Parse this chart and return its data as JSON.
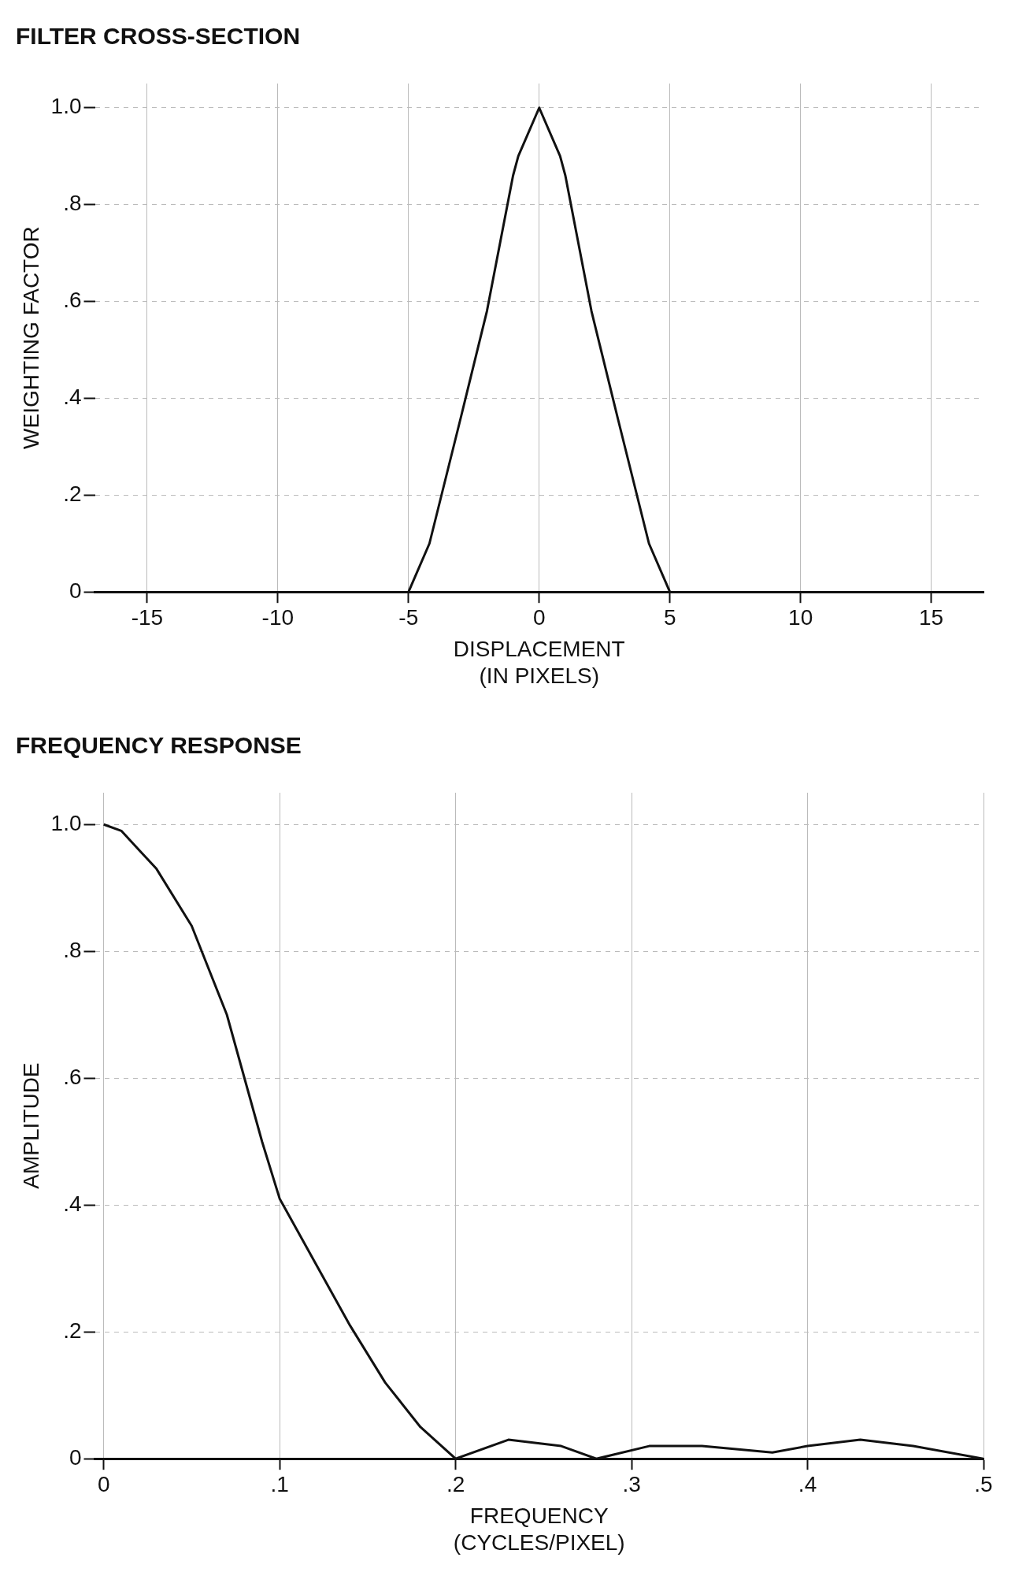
{
  "chart_data": [
    {
      "type": "line",
      "title": "FILTER CROSS-SECTION",
      "xlabel": "DISPLACEMENT\n(IN PIXELS)",
      "ylabel": "WEIGHTING FACTOR",
      "color": "#111111",
      "marker": "none",
      "grid": true,
      "x": [
        -5,
        -4.2,
        -3,
        -2,
        -1,
        -0.8,
        0,
        0.8,
        1,
        2,
        3,
        4.2,
        5
      ],
      "values": [
        0,
        0.1,
        0.36,
        0.58,
        0.86,
        0.9,
        1.0,
        0.9,
        0.86,
        0.58,
        0.36,
        0.1,
        0
      ],
      "xlim": [
        -17,
        17
      ],
      "xticks": [
        -15,
        -10,
        -5,
        0,
        5,
        10,
        15
      ],
      "ylim": [
        0,
        1.05
      ],
      "yticks": [
        {
          "value": 0,
          "label": "0"
        },
        {
          "value": 0.2,
          "label": ".2"
        },
        {
          "value": 0.4,
          "label": ".4"
        },
        {
          "value": 0.6,
          "label": ".6"
        },
        {
          "value": 0.8,
          "label": ".8"
        },
        {
          "value": 1,
          "label": "1.0"
        }
      ]
    },
    {
      "type": "line",
      "title": "FREQUENCY RESPONSE",
      "xlabel": "FREQUENCY\n(CYCLES/PIXEL)",
      "ylabel": "AMPLITUDE",
      "color": "#111111",
      "marker": "none",
      "grid": true,
      "x": [
        0,
        0.01,
        0.02,
        0.03,
        0.05,
        0.07,
        0.09,
        0.1,
        0.12,
        0.14,
        0.16,
        0.18,
        0.2,
        0.23,
        0.26,
        0.28,
        0.31,
        0.34,
        0.38,
        0.4,
        0.43,
        0.46,
        0.5
      ],
      "values": [
        1.0,
        0.99,
        0.96,
        0.93,
        0.84,
        0.7,
        0.5,
        0.41,
        0.31,
        0.21,
        0.12,
        0.05,
        0,
        0.03,
        0.02,
        0,
        0.02,
        0.02,
        0.01,
        0.02,
        0.03,
        0.02,
        0
      ],
      "xlim": [
        -0.005,
        0.5
      ],
      "xticks": [
        {
          "value": 0,
          "label": "0"
        },
        {
          "value": 0.1,
          "label": ".1"
        },
        {
          "value": 0.2,
          "label": ".2"
        },
        {
          "value": 0.3,
          "label": ".3"
        },
        {
          "value": 0.4,
          "label": ".4"
        },
        {
          "value": 0.5,
          "label": ".5"
        }
      ],
      "ylim": [
        0,
        1.05
      ],
      "yticks": [
        {
          "value": 0,
          "label": "0"
        },
        {
          "value": 0.2,
          "label": ".2"
        },
        {
          "value": 0.4,
          "label": ".4"
        },
        {
          "value": 0.6,
          "label": ".6"
        },
        {
          "value": 0.8,
          "label": ".8"
        },
        {
          "value": 1,
          "label": "1.0"
        }
      ]
    }
  ]
}
